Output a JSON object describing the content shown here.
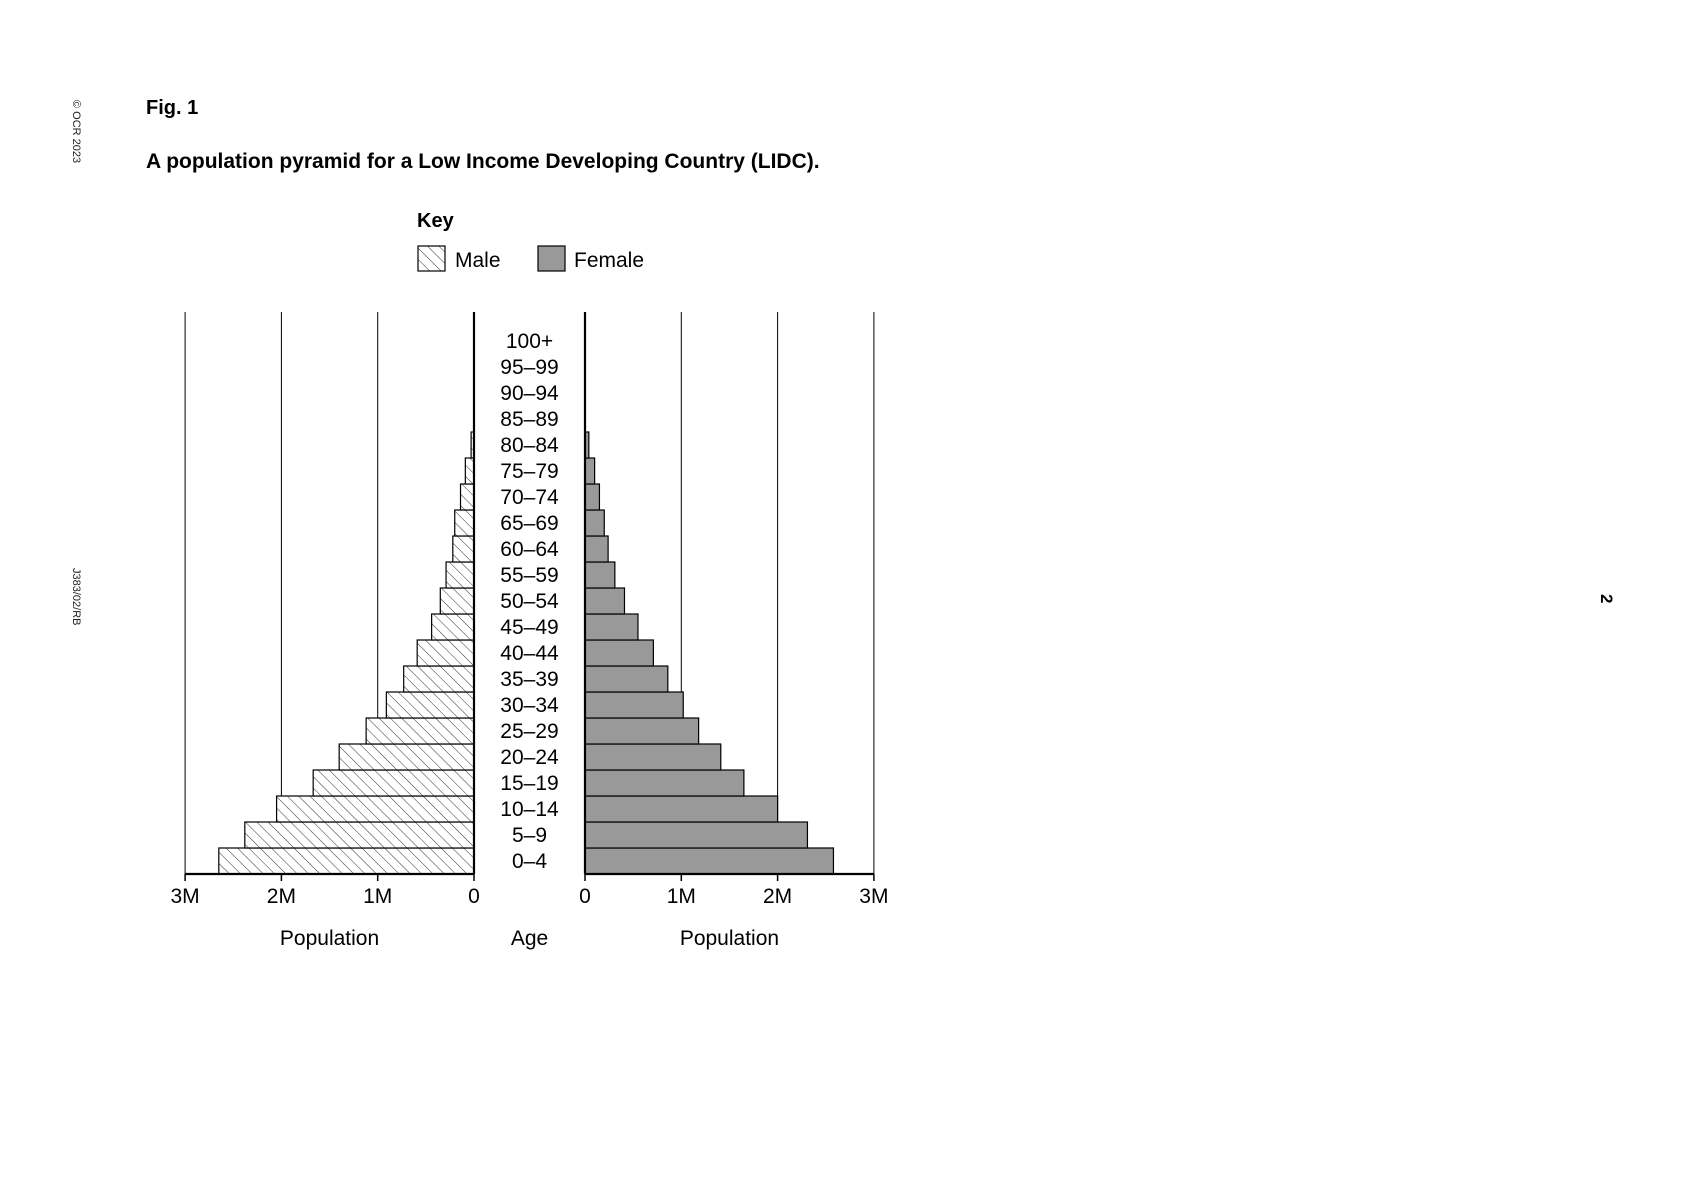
{
  "page": {
    "copyright": "© OCR 2023",
    "doc_ref": "J383/02/RB",
    "page_number": "2",
    "fig_label": "Fig. 1",
    "fig_title": "A population pyramid for a Low Income Developing Country (LIDC)."
  },
  "colors": {
    "male_fill": "#ffffff",
    "male_hatch": "#333333",
    "female_fill": "#999999",
    "axis": "#000000"
  },
  "chart_data": {
    "type": "bar",
    "orientation": "horizontal-pyramid",
    "key_title": "Key",
    "categories": [
      "0–4",
      "5–9",
      "10–14",
      "15–19",
      "20–24",
      "25–29",
      "30–34",
      "35–39",
      "40–44",
      "45–49",
      "50–54",
      "55–59",
      "60–64",
      "65–69",
      "70–74",
      "75–79",
      "80–84",
      "85–89",
      "90–94",
      "95–99",
      "100+"
    ],
    "series": [
      {
        "name": "Male",
        "pattern": "hatched",
        "values": [
          2.65,
          2.38,
          2.05,
          1.67,
          1.4,
          1.12,
          0.91,
          0.73,
          0.59,
          0.44,
          0.35,
          0.29,
          0.22,
          0.2,
          0.14,
          0.09,
          0.03,
          0,
          0,
          0,
          0
        ]
      },
      {
        "name": "Female",
        "pattern": "solid",
        "values": [
          2.58,
          2.31,
          2.0,
          1.65,
          1.41,
          1.18,
          1.02,
          0.86,
          0.71,
          0.55,
          0.41,
          0.31,
          0.24,
          0.2,
          0.15,
          0.1,
          0.04,
          0,
          0,
          0,
          0
        ]
      }
    ],
    "xlim": [
      0,
      3
    ],
    "x_ticks_left": [
      "3M",
      "2M",
      "1M",
      "0"
    ],
    "x_ticks_right": [
      "0",
      "1M",
      "2M",
      "3M"
    ],
    "xlabel_left": "Population",
    "xlabel_center": "Age",
    "xlabel_right": "Population",
    "grid": true
  }
}
